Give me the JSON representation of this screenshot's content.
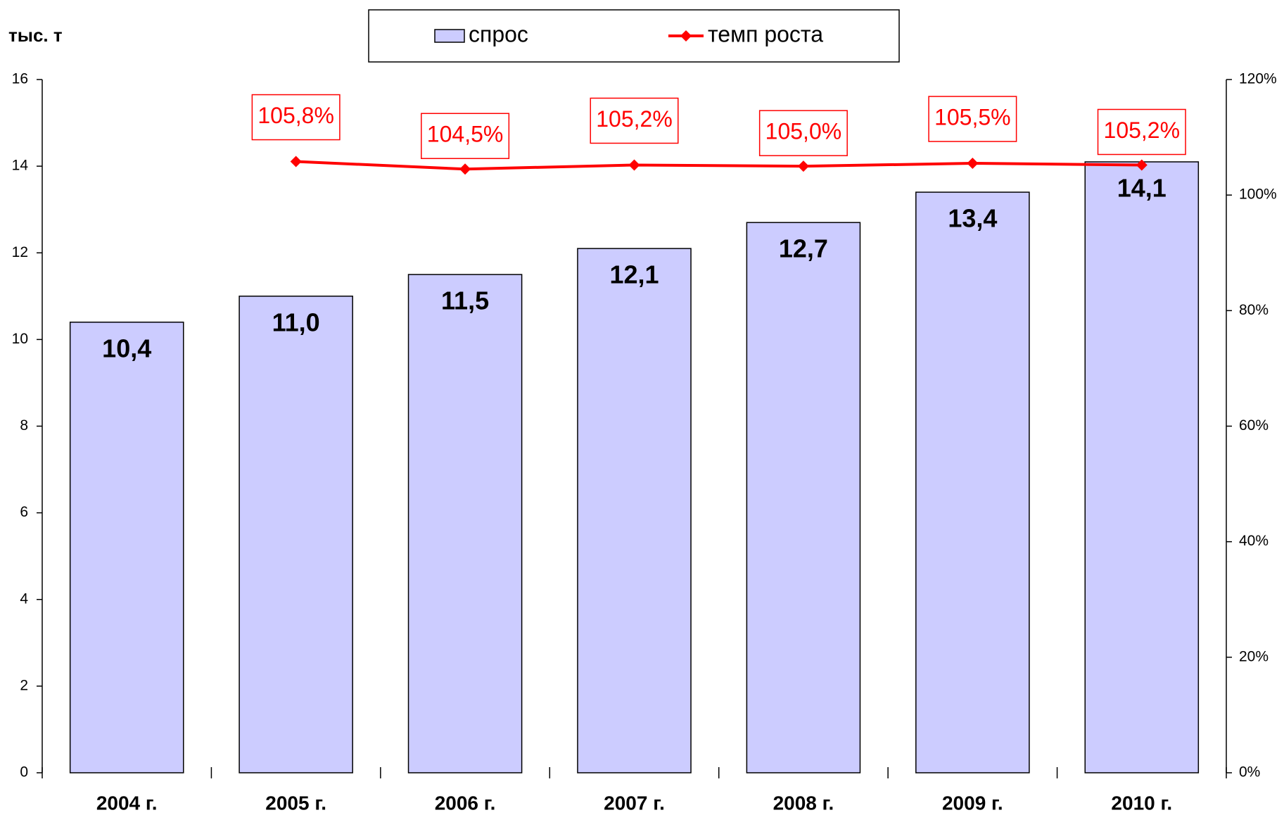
{
  "chart_data": {
    "type": "bar",
    "y_axis_label": "тыс. т",
    "categories": [
      "2004 г.",
      "2005 г.",
      "2006 г.",
      "2007 г.",
      "2008 г.",
      "2009 г.",
      "2010 г."
    ],
    "ylim": [
      0,
      16
    ],
    "yticks": [
      0,
      2,
      4,
      6,
      8,
      10,
      12,
      14,
      16
    ],
    "y2lim": [
      0,
      120
    ],
    "y2ticks": [
      {
        "value": 0,
        "label": "0%"
      },
      {
        "value": 20,
        "label": "20%"
      },
      {
        "value": 40,
        "label": "40%"
      },
      {
        "value": 60,
        "label": "60%"
      },
      {
        "value": 80,
        "label": "80%"
      },
      {
        "value": 100,
        "label": "100%"
      },
      {
        "value": 120,
        "label": "120%"
      }
    ],
    "series": [
      {
        "name": "спрос",
        "type": "bar",
        "color": "#ccccff",
        "values": [
          10.4,
          11.0,
          11.5,
          12.1,
          12.7,
          13.4,
          14.1
        ],
        "value_labels": [
          "10,4",
          "11,0",
          "11,5",
          "12,1",
          "12,7",
          "13,4",
          "14,1"
        ]
      },
      {
        "name": "темп роста",
        "type": "line",
        "axis": "y2",
        "color": "#ff0000",
        "values": [
          null,
          105.8,
          104.5,
          105.2,
          105.0,
          105.5,
          105.2
        ],
        "value_labels": [
          null,
          "105,8%",
          "104,5%",
          "105,2%",
          "105,0%",
          "105,5%",
          "105,2%"
        ]
      }
    ]
  }
}
